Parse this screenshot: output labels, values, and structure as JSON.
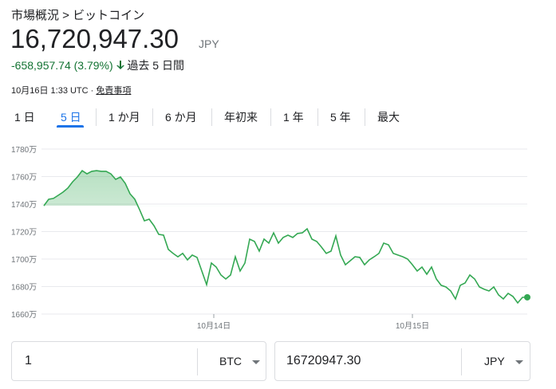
{
  "breadcrumb": "市場概況 > ビットコイン",
  "price": "16,720,947.30",
  "currency": "JPY",
  "change": "-658,957.74 (3.79%)",
  "change_period": "過去 5 日間",
  "timestamp": "10月16日 1:33 UTC",
  "disclaimer": "免責事項",
  "tabs": [
    "1 日",
    "5 日",
    "1 か月",
    "6 か月",
    "年初来",
    "1 年",
    "5 年",
    "最大"
  ],
  "active_tab": 1,
  "chart_data": {
    "type": "line",
    "color": "#34a853",
    "values": [
      1738.8,
      1743.5,
      1744.1,
      1746.4,
      1748.7,
      1751.6,
      1756.2,
      1759.7,
      1764.3,
      1762.0,
      1763.8,
      1764.3,
      1763.8,
      1763.8,
      1762.0,
      1758.0,
      1759.7,
      1755.1,
      1747.5,
      1743.5,
      1735.9,
      1727.8,
      1729.0,
      1724.3,
      1718.0,
      1717.4,
      1707.0,
      1704.1,
      1701.7,
      1704.1,
      1699.4,
      1702.9,
      1701.2,
      1691.3,
      1681.4,
      1697.1,
      1694.2,
      1688.4,
      1685.5,
      1688.4,
      1701.7,
      1691.3,
      1697.1,
      1714.5,
      1712.8,
      1705.8,
      1714.5,
      1711.6,
      1719.1,
      1711.6,
      1715.7,
      1717.4,
      1715.7,
      1718.6,
      1719.1,
      1722.0,
      1714.5,
      1712.8,
      1708.7,
      1704.1,
      1705.8,
      1716.8,
      1702.9,
      1695.9,
      1698.8,
      1701.7,
      1701.2,
      1695.9,
      1699.4,
      1701.7,
      1704.1,
      1711.6,
      1710.4,
      1704.1,
      1702.9,
      1701.7,
      1700.0,
      1695.9,
      1691.3,
      1694.2,
      1689.0,
      1694.2,
      1685.5,
      1680.9,
      1679.7,
      1676.8,
      1671.0,
      1680.9,
      1682.6,
      1688.4,
      1685.5,
      1679.7,
      1678.0,
      1676.8,
      1679.7,
      1673.9,
      1671.0,
      1675.1,
      1672.8,
      1668.1,
      1672.2,
      1672.2
    ],
    "xlim": [
      0,
      101
    ],
    "xticks": [
      {
        "value": 35.5,
        "label": "10月14日"
      },
      {
        "value": 77,
        "label": "10月15日"
      }
    ],
    "ylim": [
      1660,
      1780
    ],
    "yticks": [
      {
        "value": 1660,
        "label": "1660万"
      },
      {
        "value": 1680,
        "label": "1680万"
      },
      {
        "value": 1700,
        "label": "1700万"
      },
      {
        "value": 1720,
        "label": "1720万"
      },
      {
        "value": 1740,
        "label": "1740万"
      },
      {
        "value": 1760,
        "label": "1760万"
      },
      {
        "value": 1780,
        "label": "1780万"
      }
    ],
    "grid": true
  },
  "converter": {
    "from_amount": "1",
    "from_currency": "BTC",
    "to_amount": "16720947.30",
    "to_currency": "JPY"
  }
}
